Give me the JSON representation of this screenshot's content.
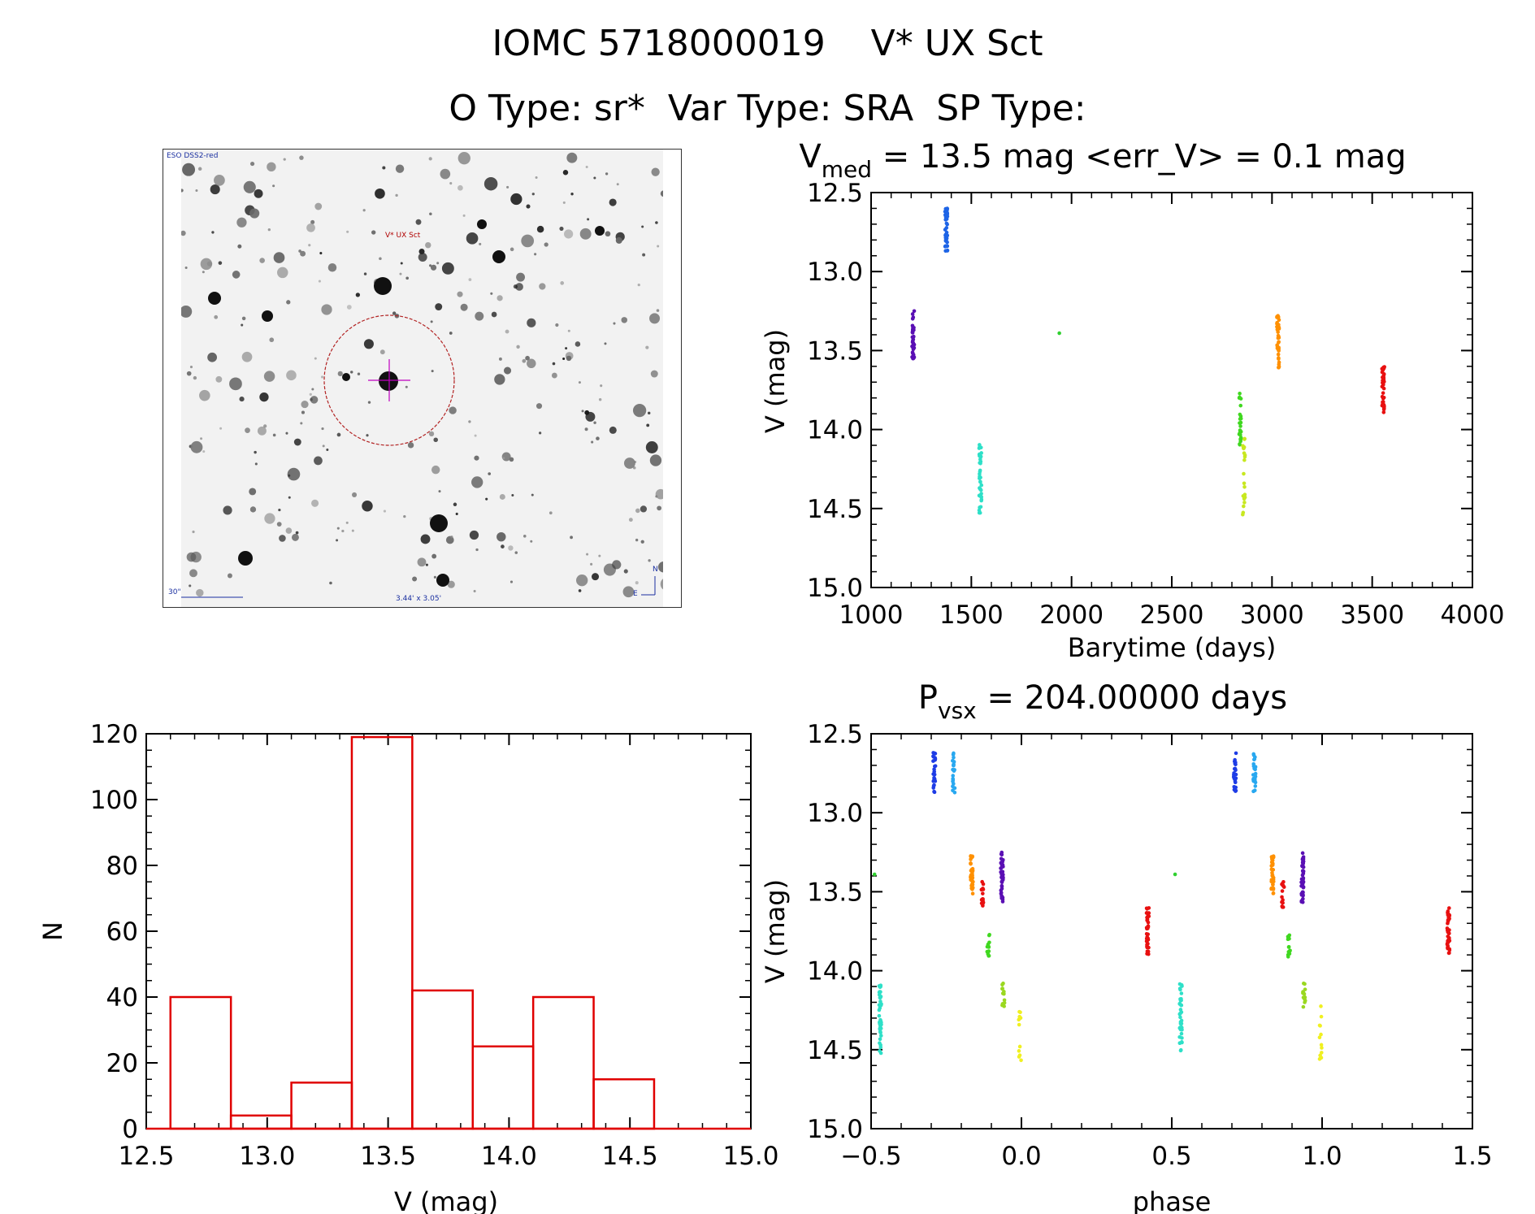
{
  "header": {
    "title_line1": "IOMC 5718000019    V* UX Sct",
    "title_line2": "O Type: sr*  Var Type: SRA  SP Type:"
  },
  "thumbnail": {
    "survey_label": "ESO DSS2-red",
    "object_label": "V* UX Sct",
    "scale_label": "30\"",
    "fov_label": "3.44' x 3.05'",
    "north_label": "N",
    "east_label": "E",
    "circle_color": "#b22222",
    "marker_color": "#c000c0"
  },
  "chart_data": [
    {
      "id": "lightcurve",
      "type": "scatter",
      "title": "V_med = 13.5 mag <err_V> = 0.1 mag",
      "title_parts": {
        "v": "V",
        "sub": "med",
        "rest": " = 13.5 mag <err_V> = 0.1 mag"
      },
      "xlabel": "Barytime (days)",
      "ylabel": "V (mag)",
      "xlim": [
        1000,
        4000
      ],
      "ylim": [
        15.0,
        12.5
      ],
      "y_inverted": true,
      "xticks": [
        "1000",
        "1500",
        "2000",
        "2500",
        "3000",
        "3500",
        "4000"
      ],
      "yticks": [
        "12.5",
        "13.0",
        "13.5",
        "14.0",
        "14.5",
        "15.0"
      ],
      "groups": [
        {
          "color": "#5a0fb4",
          "x": 1210,
          "ymin": 13.25,
          "ymax": 13.57,
          "n": 40
        },
        {
          "color": "#1e64e6",
          "x": 1375,
          "ymin": 12.6,
          "ymax": 12.87,
          "n": 45
        },
        {
          "color": "#2ee0c8",
          "x": 1545,
          "ymin": 14.08,
          "ymax": 14.53,
          "n": 40
        },
        {
          "color": "#30d030",
          "x": 1945,
          "ymin": 13.39,
          "ymax": 13.39,
          "n": 1
        },
        {
          "color": "#40d820",
          "x": 2840,
          "ymin": 13.77,
          "ymax": 14.1,
          "n": 25
        },
        {
          "color": "#c8e820",
          "x": 2860,
          "ymin": 14.05,
          "ymax": 14.58,
          "n": 22
        },
        {
          "color": "#ff9000",
          "x": 3030,
          "ymin": 13.27,
          "ymax": 13.62,
          "n": 35
        },
        {
          "color": "#e81010",
          "x": 3555,
          "ymin": 13.6,
          "ymax": 13.9,
          "n": 40
        }
      ]
    },
    {
      "id": "histogram",
      "type": "bar",
      "xlabel": "V (mag)",
      "ylabel": "N",
      "xlim": [
        12.5,
        15.0
      ],
      "ylim": [
        0,
        120
      ],
      "xticks": [
        "12.5",
        "13.0",
        "13.5",
        "14.0",
        "14.5",
        "15.0"
      ],
      "yticks": [
        "0",
        "20",
        "40",
        "60",
        "80",
        "100",
        "120"
      ],
      "bin_edges": [
        12.6,
        12.85,
        13.1,
        13.35,
        13.6,
        13.85,
        14.1,
        14.35,
        14.6
      ],
      "values": [
        40,
        4,
        14,
        119,
        42,
        25,
        40,
        15
      ],
      "color": "#e00000"
    },
    {
      "id": "phased",
      "type": "scatter",
      "title": "P_vsx = 204.00000 days",
      "title_parts": {
        "v": "P",
        "sub": "vsx",
        "rest": " = 204.00000 days"
      },
      "xlabel": "phase",
      "ylabel": "V (mag)",
      "xlim": [
        -0.5,
        1.5
      ],
      "ylim": [
        15.0,
        12.5
      ],
      "y_inverted": true,
      "xticks": [
        "−0.5",
        "0.0",
        "0.5",
        "1.0",
        "1.5"
      ],
      "yticks": [
        "12.5",
        "13.0",
        "13.5",
        "14.0",
        "14.5",
        "15.0"
      ],
      "groups": [
        {
          "color": "#2ee0c8",
          "x": -0.47,
          "ymin": 14.08,
          "ymax": 14.53,
          "n": 40,
          "repeat": true
        },
        {
          "color": "#30d030",
          "x": -0.49,
          "ymin": 13.39,
          "ymax": 13.39,
          "n": 1,
          "repeat": true
        },
        {
          "color": "#1e3ce6",
          "x": -0.29,
          "ymin": 12.62,
          "ymax": 12.87,
          "n": 25,
          "repeat": true
        },
        {
          "color": "#28a8f0",
          "x": -0.225,
          "ymin": 12.62,
          "ymax": 12.88,
          "n": 22,
          "repeat": true
        },
        {
          "color": "#ff9000",
          "x": -0.165,
          "ymin": 13.27,
          "ymax": 13.52,
          "n": 35,
          "repeat": true
        },
        {
          "color": "#e81010",
          "x": -0.13,
          "ymin": 13.42,
          "ymax": 13.6,
          "n": 14,
          "repeat": true
        },
        {
          "color": "#40d820",
          "x": -0.11,
          "ymin": 13.77,
          "ymax": 13.92,
          "n": 14,
          "repeat": true
        },
        {
          "color": "#5a0fb4",
          "x": -0.065,
          "ymin": 13.25,
          "ymax": 13.57,
          "n": 45,
          "repeat": true
        },
        {
          "color": "#9ad820",
          "x": -0.06,
          "ymin": 14.08,
          "ymax": 14.23,
          "n": 14,
          "repeat": true
        },
        {
          "color": "#f0f020",
          "x": -0.005,
          "ymin": 14.18,
          "ymax": 14.58,
          "n": 12,
          "repeat": true
        },
        {
          "color": "#e81010",
          "x": 0.42,
          "ymin": 13.6,
          "ymax": 13.9,
          "n": 40,
          "repeat": true
        }
      ]
    }
  ]
}
